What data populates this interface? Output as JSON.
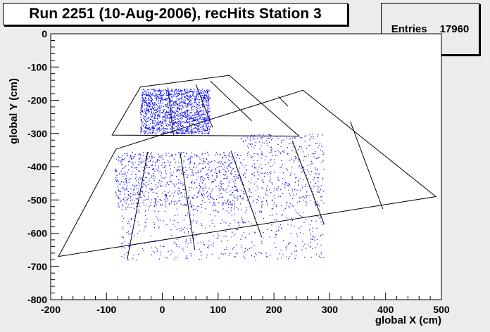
{
  "chart_data": {
    "type": "scatter",
    "title": "Run 2251 (10-Aug-2006), recHits Station 3",
    "xlabel": "global X (cm)",
    "ylabel": "global Y (cm)",
    "xlim": [
      -200,
      500
    ],
    "ylim": [
      -800,
      0
    ],
    "x_ticks": [
      -200,
      -100,
      0,
      100,
      200,
      300,
      400,
      500
    ],
    "y_ticks": [
      0,
      -100,
      -200,
      -300,
      -400,
      -500,
      -600,
      -700,
      -800
    ],
    "stats": {
      "label": "Entries",
      "value": "17960"
    },
    "marker_color": "#0000ff",
    "grid": false,
    "chamber_outlines": [
      {
        "corners": [
          [
            -39,
            -160
          ],
          [
            -90,
            -305
          ],
          [
            245,
            -308
          ],
          [
            120,
            -125
          ]
        ]
      },
      {
        "corners": [
          [
            -83,
            -347
          ],
          [
            -186,
            -670
          ],
          [
            490,
            -490
          ],
          [
            252,
            -170
          ]
        ]
      }
    ],
    "chamber_dividers": [
      [
        [
          10,
          -162
        ],
        [
          20,
          -305
        ]
      ],
      [
        [
          60,
          -152
        ],
        [
          90,
          -282
        ]
      ],
      [
        [
          86,
          -142
        ],
        [
          160,
          -262
        ]
      ],
      [
        [
          -26,
          -355
        ],
        [
          -63,
          -680
        ]
      ],
      [
        [
          32,
          -358
        ],
        [
          58,
          -650
        ]
      ],
      [
        [
          123,
          -352
        ],
        [
          178,
          -612
        ]
      ],
      [
        [
          233,
          -322
        ],
        [
          290,
          -574
        ]
      ],
      [
        [
          337,
          -265
        ],
        [
          395,
          -527
        ]
      ],
      [
        [
          208,
          -189
        ],
        [
          225,
          -218
        ]
      ]
    ],
    "hit_regions": [
      {
        "x": [
          -40,
          85
        ],
        "y": [
          -300,
          -165
        ],
        "density": "high"
      },
      {
        "x": [
          -85,
          140
        ],
        "y": [
          -520,
          -355
        ],
        "density": "medium"
      },
      {
        "x": [
          -75,
          290
        ],
        "y": [
          -680,
          -520
        ],
        "density": "low"
      },
      {
        "x": [
          140,
          290
        ],
        "y": [
          -520,
          -300
        ],
        "density": "low"
      }
    ]
  }
}
